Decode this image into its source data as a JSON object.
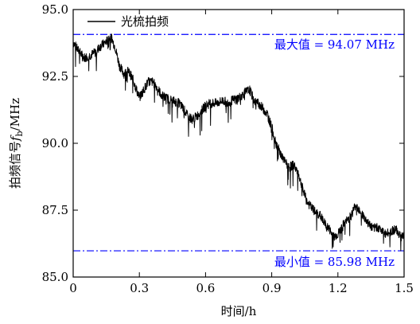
{
  "chart_data": {
    "type": "line",
    "xlabel": "时间/h",
    "ylabel": "拍频信号",
    "ylabel_symbol": "f",
    "ylabel_subscript": "b",
    "ylabel_unit": "/MHz",
    "xlim": [
      0,
      1.5
    ],
    "ylim": [
      85.0,
      95.0
    ],
    "x_ticks": [
      "0",
      "0.3",
      "0.6",
      "0.9",
      "1.2",
      "1.5"
    ],
    "y_ticks": [
      "85.0",
      "87.5",
      "90.0",
      "92.5",
      "95.0"
    ],
    "grid": false,
    "legend_position": "top-left",
    "series": [
      {
        "name": "光梳拍频",
        "color": "#000000",
        "x": [
          0,
          0.02,
          0.05,
          0.08,
          0.1,
          0.12,
          0.15,
          0.17,
          0.19,
          0.21,
          0.23,
          0.25,
          0.27,
          0.3,
          0.32,
          0.34,
          0.36,
          0.38,
          0.4,
          0.42,
          0.45,
          0.48,
          0.5,
          0.52,
          0.54,
          0.56,
          0.58,
          0.6,
          0.62,
          0.65,
          0.68,
          0.7,
          0.72,
          0.75,
          0.78,
          0.8,
          0.82,
          0.84,
          0.86,
          0.88,
          0.9,
          0.92,
          0.94,
          0.96,
          0.98,
          1.0,
          1.02,
          1.04,
          1.06,
          1.08,
          1.1,
          1.12,
          1.14,
          1.16,
          1.18,
          1.2,
          1.22,
          1.24,
          1.26,
          1.28,
          1.3,
          1.32,
          1.34,
          1.36,
          1.38,
          1.4,
          1.42,
          1.44,
          1.46,
          1.48,
          1.5
        ],
        "y": [
          93.8,
          93.5,
          93.2,
          93.3,
          93.4,
          93.6,
          93.8,
          94.0,
          93.6,
          92.9,
          92.6,
          92.7,
          92.4,
          91.7,
          92.0,
          92.3,
          92.3,
          92.1,
          91.8,
          91.7,
          91.6,
          91.5,
          91.3,
          91.0,
          90.9,
          91.0,
          91.2,
          91.4,
          91.5,
          91.5,
          91.6,
          91.5,
          91.6,
          91.7,
          91.9,
          92.0,
          91.6,
          91.5,
          91.3,
          91.1,
          90.6,
          90.0,
          89.6,
          89.3,
          89.1,
          89.2,
          88.9,
          88.3,
          87.8,
          87.6,
          87.4,
          87.3,
          87.0,
          86.8,
          86.5,
          86.6,
          86.9,
          87.1,
          87.3,
          87.7,
          87.5,
          87.2,
          87.0,
          86.8,
          86.9,
          86.7,
          86.6,
          86.7,
          86.8,
          86.6,
          86.5
        ]
      }
    ],
    "reference_lines": [
      {
        "y": 94.07,
        "label": "最大值 = 94.07 MHz",
        "color": "#0000ff"
      },
      {
        "y": 85.98,
        "label": "最小值 = 85.98 MHz",
        "color": "#0000ff"
      }
    ]
  }
}
